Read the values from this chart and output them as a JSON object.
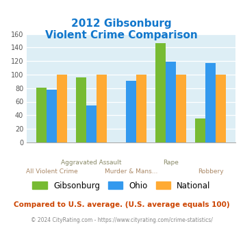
{
  "title_line1": "2012 Gibsonburg",
  "title_line2": "Violent Crime Comparison",
  "categories": [
    "All Violent Crime",
    "Aggravated Assault",
    "Murder & Mans...",
    "Rape",
    "Robbery"
  ],
  "gibsonburg": [
    81,
    96,
    0,
    146,
    35
  ],
  "ohio": [
    78,
    54,
    91,
    119,
    117
  ],
  "national": [
    100,
    100,
    100,
    100,
    100
  ],
  "color_gibsonburg": "#77bb33",
  "color_ohio": "#3399ee",
  "color_national": "#ffaa33",
  "ylim": [
    0,
    160
  ],
  "yticks": [
    0,
    20,
    40,
    60,
    80,
    100,
    120,
    140,
    160
  ],
  "bg_color": "#ddeef5",
  "title_color": "#1177cc",
  "xlabel_upper_color": "#888866",
  "xlabel_lower_color": "#aa8866",
  "footer_text": "Compared to U.S. average. (U.S. average equals 100)",
  "copyright_text": "© 2024 CityRating.com - https://www.cityrating.com/crime-statistics/",
  "footer_color": "#cc4400",
  "copyright_color": "#888888",
  "legend_label_gibsonburg": "Gibsonburg",
  "legend_label_ohio": "Ohio",
  "legend_label_national": "National"
}
